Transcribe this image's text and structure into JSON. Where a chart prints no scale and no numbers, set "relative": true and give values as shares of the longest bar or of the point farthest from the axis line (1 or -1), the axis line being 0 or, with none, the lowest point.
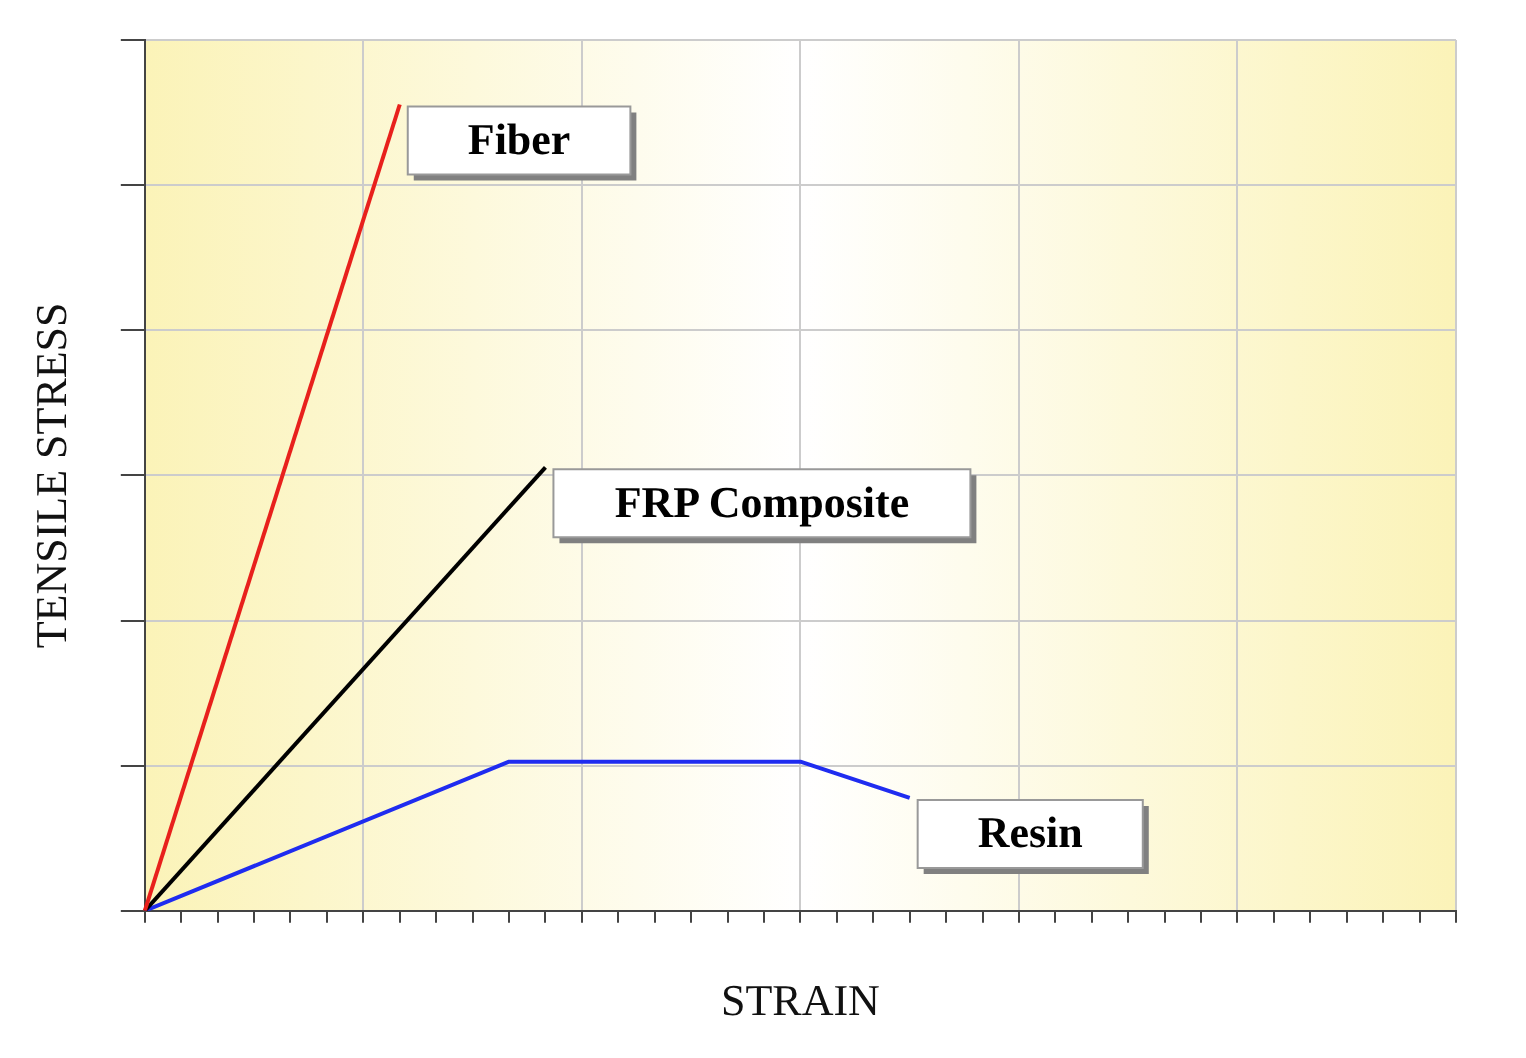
{
  "chart_data": {
    "type": "line",
    "relative": true,
    "xlabel": "STRAIN",
    "ylabel": "TENSILE STRESS",
    "grid": true,
    "legend": false,
    "marker": "none",
    "line_style": "solid",
    "categories": [
      null,
      null,
      null,
      null,
      null,
      null,
      null,
      null,
      null,
      null,
      null,
      null,
      null,
      null,
      null,
      null,
      null,
      null,
      null,
      null,
      null,
      null,
      null,
      null,
      null,
      null,
      null,
      null,
      null,
      null,
      null,
      null,
      null,
      null,
      null,
      null,
      null
    ],
    "series": [
      {
        "name": "Fiber",
        "color": "#e8201c",
        "values": [
          0,
          null,
          null,
          null,
          null,
          null,
          null,
          1,
          null,
          null,
          null,
          null,
          null,
          null,
          null,
          null,
          null,
          null,
          null,
          null,
          null,
          null,
          null,
          null,
          null,
          null,
          null,
          null,
          null,
          null,
          null,
          null,
          null,
          null,
          null,
          null,
          null
        ]
      },
      {
        "name": "FRP Composite",
        "color": "#000000",
        "values": [
          0,
          null,
          null,
          null,
          null,
          null,
          null,
          null,
          null,
          null,
          null,
          0.55,
          null,
          null,
          null,
          null,
          null,
          null,
          null,
          null,
          null,
          null,
          null,
          null,
          null,
          null,
          null,
          null,
          null,
          null,
          null,
          null,
          null,
          null,
          null,
          null,
          null
        ]
      },
      {
        "name": "Resin",
        "color": "#1f2cf0",
        "values": [
          0,
          null,
          null,
          null,
          null,
          null,
          null,
          null,
          null,
          null,
          0.185,
          null,
          null,
          null,
          null,
          null,
          null,
          null,
          0.185,
          null,
          null,
          0.14,
          null,
          null,
          null,
          null,
          null,
          null,
          null,
          null,
          null,
          null,
          null,
          null,
          null,
          null,
          null
        ]
      }
    ]
  }
}
